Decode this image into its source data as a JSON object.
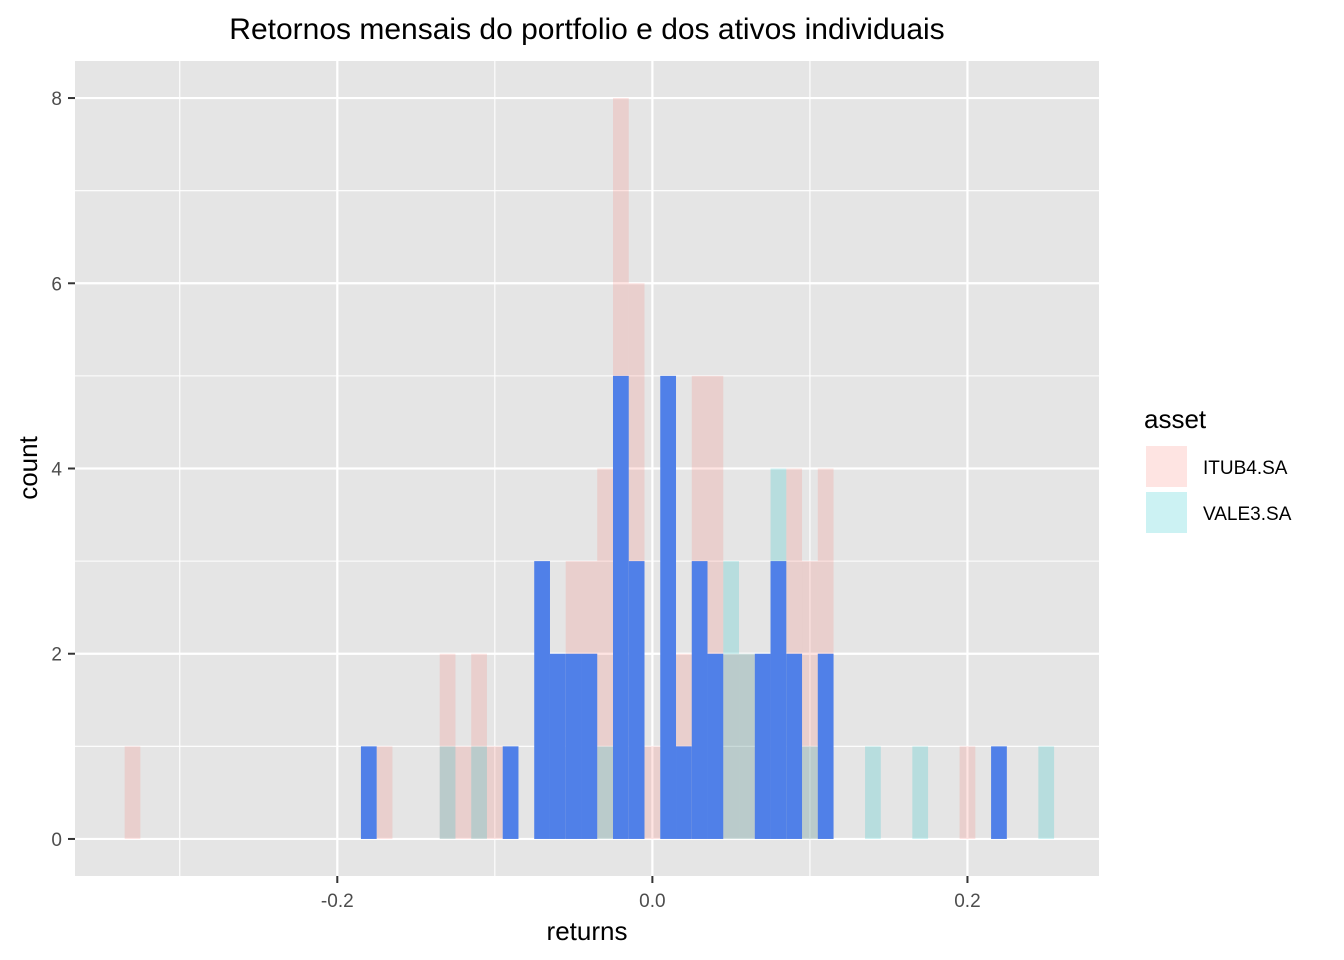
{
  "chart_data": {
    "type": "bar",
    "title": "Retornos mensais do portfolio e dos ativos individuais",
    "xlabel": "returns",
    "ylabel": "count",
    "xlim": [
      -0.3665,
      0.2835
    ],
    "ylim": [
      -0.4,
      8.4
    ],
    "x_ticks": [
      -0.2,
      0.0,
      0.2
    ],
    "x_tick_labels": [
      "-0.2",
      "0.0",
      "0.2"
    ],
    "y_ticks": [
      0,
      2,
      4,
      6,
      8
    ],
    "y_tick_labels": [
      "0",
      "2",
      "4",
      "6",
      "8"
    ],
    "grid": true,
    "bin_width": 0.01,
    "legend": {
      "title": "asset",
      "placement": "right",
      "entries": [
        "ITUB4.SA",
        "VALE3.SA"
      ]
    },
    "series": [
      {
        "name": "ITUB4.SA",
        "color": "#f8766d",
        "opacity": 0.2,
        "bins": [
          {
            "x": -0.33,
            "count": 1
          },
          {
            "x": -0.17,
            "count": 1
          },
          {
            "x": -0.13,
            "count": 2
          },
          {
            "x": -0.12,
            "count": 1
          },
          {
            "x": -0.11,
            "count": 2
          },
          {
            "x": -0.1,
            "count": 1
          },
          {
            "x": -0.05,
            "count": 3
          },
          {
            "x": -0.04,
            "count": 3
          },
          {
            "x": -0.03,
            "count": 4
          },
          {
            "x": -0.02,
            "count": 8
          },
          {
            "x": -0.01,
            "count": 6
          },
          {
            "x": 0.0,
            "count": 1
          },
          {
            "x": 0.02,
            "count": 2
          },
          {
            "x": 0.03,
            "count": 5
          },
          {
            "x": 0.04,
            "count": 5
          },
          {
            "x": 0.05,
            "count": 2
          },
          {
            "x": 0.06,
            "count": 2
          },
          {
            "x": 0.07,
            "count": 1
          },
          {
            "x": 0.08,
            "count": 3
          },
          {
            "x": 0.09,
            "count": 4
          },
          {
            "x": 0.1,
            "count": 3
          },
          {
            "x": 0.11,
            "count": 4
          },
          {
            "x": 0.2,
            "count": 1
          }
        ]
      },
      {
        "name": "VALE3.SA",
        "color": "#00bfc4",
        "opacity": 0.2,
        "bins": [
          {
            "x": -0.13,
            "count": 1
          },
          {
            "x": -0.11,
            "count": 1
          },
          {
            "x": -0.06,
            "count": 1
          },
          {
            "x": -0.03,
            "count": 1
          },
          {
            "x": 0.05,
            "count": 3
          },
          {
            "x": 0.06,
            "count": 2
          },
          {
            "x": 0.08,
            "count": 4
          },
          {
            "x": 0.1,
            "count": 1
          },
          {
            "x": 0.14,
            "count": 1
          },
          {
            "x": 0.17,
            "count": 1
          },
          {
            "x": 0.25,
            "count": 1
          }
        ]
      },
      {
        "color": "#5080e8",
        "opacity": 1,
        "bins": [
          {
            "x": -0.18,
            "count": 1
          },
          {
            "x": -0.09,
            "count": 1
          },
          {
            "x": -0.07,
            "count": 3
          },
          {
            "x": -0.06,
            "count": 2
          },
          {
            "x": -0.05,
            "count": 2
          },
          {
            "x": -0.04,
            "count": 2
          },
          {
            "x": -0.02,
            "count": 5
          },
          {
            "x": -0.01,
            "count": 3
          },
          {
            "x": 0.01,
            "count": 5
          },
          {
            "x": 0.02,
            "count": 1
          },
          {
            "x": 0.03,
            "count": 3
          },
          {
            "x": 0.04,
            "count": 2
          },
          {
            "x": 0.07,
            "count": 2
          },
          {
            "x": 0.08,
            "count": 3
          },
          {
            "x": 0.09,
            "count": 2
          },
          {
            "x": 0.11,
            "count": 2
          },
          {
            "x": 0.22,
            "count": 1
          }
        ]
      }
    ],
    "colors": {
      "panel_background": "#e5e5e5",
      "gridline": "#ffffff",
      "tick_label": "#4d4d4d",
      "tick_mark": "#333333"
    }
  }
}
